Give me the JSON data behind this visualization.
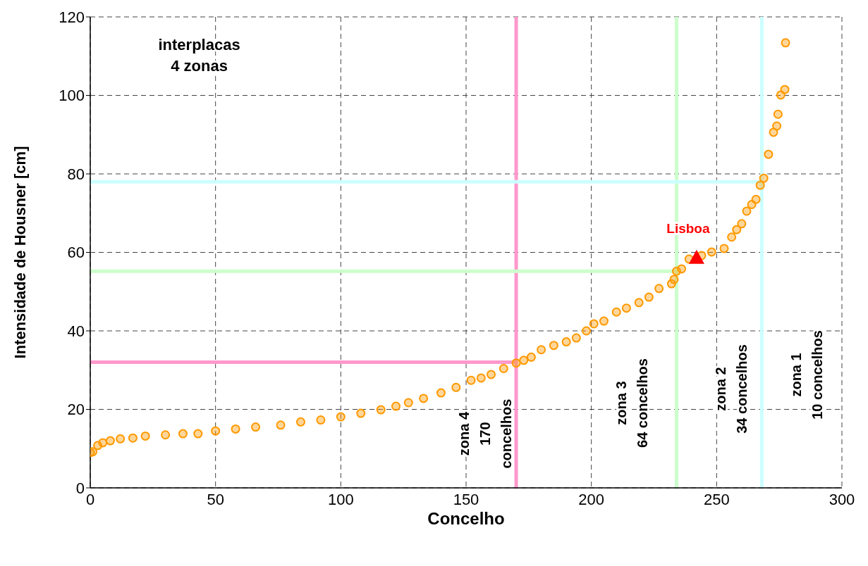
{
  "chart_data": {
    "type": "scatter",
    "xlabel": "Concelho",
    "ylabel": "Intensidade de Housner  [cm]",
    "xlim": [
      0,
      300
    ],
    "xticks": [
      0,
      50,
      100,
      150,
      200,
      250,
      300
    ],
    "ylim": [
      0,
      120
    ],
    "yticks": [
      0,
      20,
      40,
      60,
      80,
      100,
      120
    ],
    "grid": true,
    "marker": "circle",
    "series": [
      {
        "color": "#ff9900",
        "x": [
          0,
          1,
          3,
          5,
          8,
          12,
          17,
          22,
          30,
          37,
          43,
          50,
          58,
          66,
          76,
          84,
          92,
          100,
          108,
          116,
          122,
          127,
          133,
          140,
          146,
          152,
          156,
          160,
          165,
          170,
          173,
          176,
          180,
          185,
          190,
          194,
          198,
          201,
          205,
          210,
          214,
          219,
          223,
          227,
          232,
          233,
          234,
          236,
          239,
          244,
          248,
          253,
          256,
          258,
          260,
          262,
          264,
          265.7,
          267.4,
          268.8,
          270.7,
          272.7,
          274,
          274.5,
          275.6,
          277.2,
          277.5
        ],
        "values": [
          9,
          9.2,
          10.8,
          11.5,
          12,
          12.5,
          12.7,
          13.2,
          13.5,
          13.8,
          13.8,
          14.5,
          15,
          15.5,
          16,
          16.8,
          17.3,
          18.1,
          19,
          19.9,
          20.8,
          21.7,
          22.8,
          24.2,
          25.6,
          27.4,
          28,
          28.9,
          30.4,
          31.8,
          32.5,
          33.3,
          35.2,
          36.3,
          37.2,
          38.2,
          40,
          41.8,
          42.5,
          44.8,
          45.8,
          47.2,
          48.6,
          50.8,
          52,
          53.1,
          55.2,
          55.8,
          58.3,
          59.2,
          60.1,
          61,
          63.9,
          65.8,
          67.3,
          70.5,
          72.2,
          73.5,
          77.1,
          78.9,
          85,
          90.6,
          92.2,
          95.2,
          100.1,
          101.5,
          113.4
        ]
      },
      {
        "name": "Lisboa",
        "color": "#ff0000",
        "marker": "triangle",
        "x": [
          242
        ],
        "values": [
          58.5
        ]
      },
      {
        "type": "line",
        "marker": "none",
        "color": "#ff99cc",
        "x": [
          0,
          170
        ],
        "values": [
          32,
          32
        ]
      },
      {
        "type": "line",
        "marker": "none",
        "color": "#ccffcc",
        "x": [
          0,
          234
        ],
        "values": [
          55.2,
          55.2
        ]
      },
      {
        "type": "line",
        "marker": "none",
        "color": "#ccffff",
        "x": [
          0,
          268
        ],
        "values": [
          78,
          78
        ]
      }
    ],
    "ref_lines": [
      {
        "axis": "x",
        "value": 170,
        "color": "#ff99cc"
      },
      {
        "axis": "x",
        "value": 234,
        "color": "#ccffcc"
      },
      {
        "axis": "x",
        "value": 268,
        "color": "#ccffff"
      }
    ],
    "annotations": [
      "interplacas\n4 zonas",
      "zona 4\n170\nconcelhos",
      "zona 3\n64 concelhos",
      "zona 2\n34 concelhos",
      "zona 1\n10 concelhos"
    ]
  }
}
